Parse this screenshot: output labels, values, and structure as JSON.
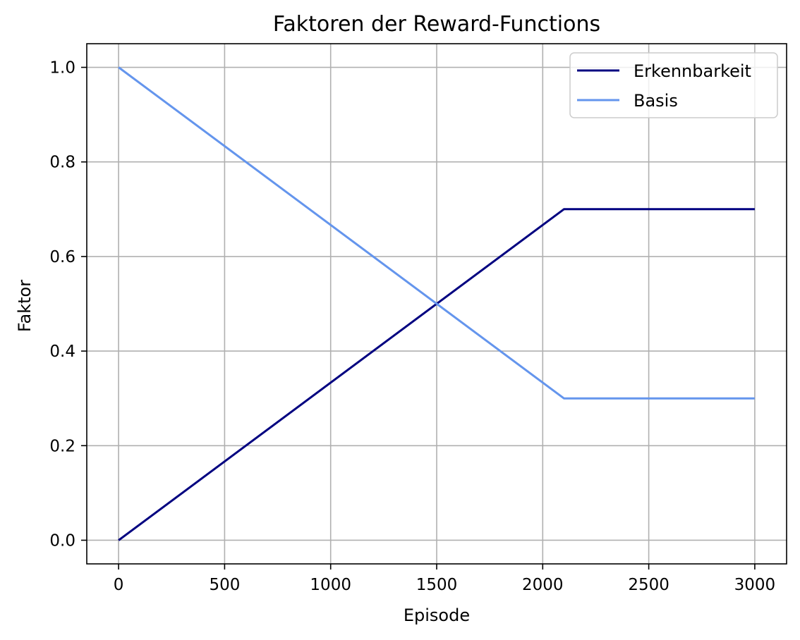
{
  "chart_data": {
    "type": "line",
    "title": "Faktoren der Reward-Functions",
    "xlabel": "Episode",
    "ylabel": "Faktor",
    "xlim": [
      -150,
      3150
    ],
    "ylim": [
      -0.05,
      1.05
    ],
    "xticks": [
      0,
      500,
      1000,
      1500,
      2000,
      2500,
      3000
    ],
    "xtick_labels": [
      "0",
      "500",
      "1000",
      "1500",
      "2000",
      "2500",
      "3000"
    ],
    "yticks": [
      0.0,
      0.2,
      0.4,
      0.6,
      0.8,
      1.0
    ],
    "ytick_labels": [
      "0.0",
      "0.2",
      "0.4",
      "0.6",
      "0.8",
      "1.0"
    ],
    "grid": true,
    "legend_position": "top-right",
    "series": [
      {
        "name": "Erkennbarkeit",
        "color": "#000080",
        "x": [
          0,
          2100,
          3000
        ],
        "y": [
          0.0,
          0.7,
          0.7
        ]
      },
      {
        "name": "Basis",
        "color": "#6495ED",
        "x": [
          0,
          2100,
          3000
        ],
        "y": [
          1.0,
          0.3,
          0.3
        ]
      }
    ]
  }
}
